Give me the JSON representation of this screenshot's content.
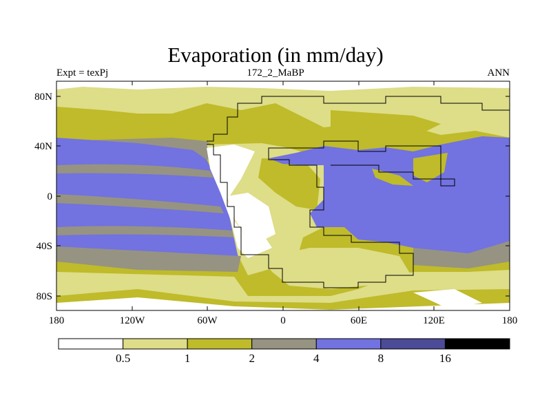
{
  "title": "Evaporation (in mm/day)",
  "subtitle_left": "Expt = texPj",
  "subtitle_center": "172_2_MaBP",
  "subtitle_right": "ANN",
  "lat_labels": [
    "80N",
    "40N",
    "0",
    "40S",
    "80S"
  ],
  "lon_labels": [
    "180",
    "120W",
    "60W",
    "0",
    "60E",
    "120E",
    "180"
  ],
  "colorbar": {
    "colors": [
      "#ffffff",
      "#dedd88",
      "#bfbb2a",
      "#969382",
      "#7272e0",
      "#4b4b97",
      "#000000"
    ],
    "labels": [
      "0.5",
      "1",
      "2",
      "4",
      "8",
      "16"
    ]
  }
}
